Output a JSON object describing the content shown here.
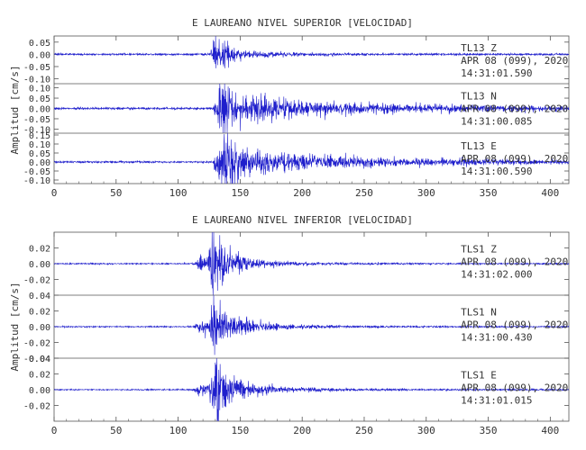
{
  "chart_data": [
    {
      "type": "line",
      "title": "E LAUREANO NIVEL SUPERIOR [VELOCIDAD]",
      "ylabel": "Amplitud [cm/s]",
      "xlim": [
        0,
        415
      ],
      "xticks": [
        0,
        50,
        100,
        150,
        200,
        250,
        300,
        350,
        400
      ],
      "line_color": "#1f1fcc",
      "panels": [
        {
          "ylim": [
            -0.12,
            0.075
          ],
          "yticks": [
            0.05,
            0.0,
            -0.05,
            -0.1
          ],
          "ytick_labels": [
            "0.05",
            "0.00",
            "-0.05",
            "-0.10"
          ],
          "station": "TL13",
          "component": "Z",
          "date": "APR 08 (099), 2020",
          "time": "14:31:01.590",
          "noise": 0.003,
          "bursts": [
            {
              "t0": 126,
              "peak": 0.055,
              "rise": 4,
              "decay": 13
            },
            {
              "t0": 160,
              "peak": 0.005,
              "rise": 10,
              "decay": 40
            }
          ]
        },
        {
          "ylim": [
            -0.12,
            0.12
          ],
          "yticks": [
            0.1,
            0.05,
            0.0,
            -0.05,
            -0.1
          ],
          "ytick_labels": [
            "0.10",
            "0.05",
            "0.00",
            "-0.05",
            "-0.10"
          ],
          "station": "TL13",
          "component": "N",
          "date": "APR 08 (099), 2020",
          "time": "14:31:00.085",
          "noise": 0.004,
          "bursts": [
            {
              "t0": 128,
              "peak": 0.1,
              "rise": 6,
              "decay": 20
            },
            {
              "t0": 150,
              "peak": 0.025,
              "rise": 20,
              "decay": 150
            }
          ]
        },
        {
          "ylim": [
            -0.12,
            0.16
          ],
          "yticks": [
            0.15,
            0.1,
            0.05,
            0.0,
            -0.05,
            -0.1
          ],
          "ytick_labels": [
            "0.15",
            "0.10",
            "0.05",
            "0.00",
            "-0.05",
            "-0.10"
          ],
          "station": "TL13",
          "component": "E",
          "date": "APR 08 (099), 2020",
          "time": "14:31:00.590",
          "noise": 0.004,
          "bursts": [
            {
              "t0": 128,
              "peak": 0.13,
              "rise": 8,
              "decay": 18
            },
            {
              "t0": 150,
              "peak": 0.03,
              "rise": 20,
              "decay": 140
            }
          ]
        }
      ]
    },
    {
      "type": "line",
      "title": "E LAUREANO NIVEL INFERIOR [VELOCIDAD]",
      "ylabel": "Amplitud [cm/s]",
      "xlim": [
        0,
        415
      ],
      "xticks": [
        0,
        50,
        100,
        150,
        200,
        250,
        300,
        350,
        400
      ],
      "line_color": "#1f1fcc",
      "panels": [
        {
          "ylim": [
            -0.04,
            0.04
          ],
          "yticks": [
            0.02,
            0.0,
            -0.02
          ],
          "ytick_labels": [
            "0.02",
            "0.00",
            "-0.02"
          ],
          "station": "TLS1",
          "component": "Z",
          "date": "APR 08 (099), 2020",
          "time": "14:31:02.000",
          "noise": 0.0006,
          "bursts": [
            {
              "t0": 112,
              "peak": 0.009,
              "rise": 6,
              "decay": 15
            },
            {
              "t0": 124,
              "peak": 0.038,
              "rise": 3,
              "decay": 10
            },
            {
              "t0": 140,
              "peak": 0.003,
              "rise": 10,
              "decay": 50
            }
          ]
        },
        {
          "ylim": [
            -0.04,
            0.04
          ],
          "yticks": [
            0.04,
            0.02,
            0.0,
            -0.02,
            -0.04
          ],
          "ytick_labels": [
            "0.04",
            "0.02",
            "0.00",
            "-0.02",
            "-0.04"
          ],
          "station": "TLS1",
          "component": "N",
          "date": "APR 08 (099), 2020",
          "time": "14:31:00.430",
          "noise": 0.0006,
          "bursts": [
            {
              "t0": 112,
              "peak": 0.006,
              "rise": 6,
              "decay": 12
            },
            {
              "t0": 124,
              "peak": 0.028,
              "rise": 4,
              "decay": 14
            },
            {
              "t0": 145,
              "peak": 0.003,
              "rise": 10,
              "decay": 60
            }
          ]
        },
        {
          "ylim": [
            -0.04,
            0.04
          ],
          "yticks": [
            0.04,
            0.02,
            0.0,
            -0.02
          ],
          "ytick_labels": [
            "0.04",
            "0.02",
            "0.00",
            "-0.02"
          ],
          "station": "TLS1",
          "component": "E",
          "date": "APR 08 (099), 2020",
          "time": "14:31:01.015",
          "noise": 0.0006,
          "bursts": [
            {
              "t0": 112,
              "peak": 0.006,
              "rise": 6,
              "decay": 12
            },
            {
              "t0": 124,
              "peak": 0.034,
              "rise": 4,
              "decay": 13
            },
            {
              "t0": 145,
              "peak": 0.003,
              "rise": 10,
              "decay": 60
            }
          ]
        }
      ]
    }
  ]
}
